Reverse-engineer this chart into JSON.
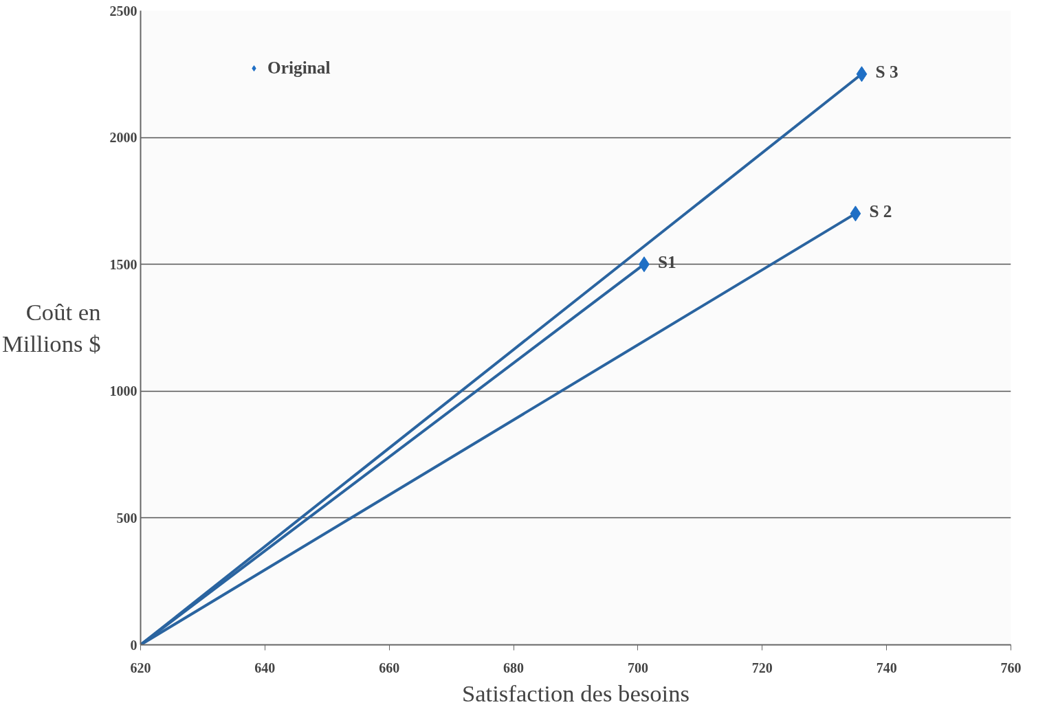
{
  "chart_data": {
    "type": "scatter",
    "xlabel": "Satisfaction des besoins",
    "ylabel": "Coût en\nMillions $",
    "xlim": [
      620,
      760
    ],
    "xticks": [
      620,
      640,
      660,
      680,
      700,
      720,
      740,
      760
    ],
    "ylim": [
      0,
      2500
    ],
    "yticks": [
      0,
      500,
      1000,
      1500,
      2000,
      2500
    ],
    "grid": "y",
    "legend": "top left",
    "series": [
      {
        "name": "Original",
        "marker": "diamond",
        "color": "#1f6fc5",
        "x": [
          701,
          735,
          736
        ],
        "values": [
          1500,
          1700,
          2250
        ]
      },
      {
        "type": "line",
        "color": "#2a64a0",
        "x": [
          620,
          701
        ],
        "values": [
          0,
          1500
        ]
      },
      {
        "type": "line",
        "color": "#2a64a0",
        "x": [
          620,
          735
        ],
        "values": [
          0,
          1700
        ]
      },
      {
        "type": "line",
        "color": "#2a64a0",
        "x": [
          620,
          736
        ],
        "values": [
          0,
          2250
        ]
      }
    ],
    "annotations": [
      {
        "text": "S1",
        "x": 701,
        "y": 1500
      },
      {
        "text": "S 2",
        "x": 735,
        "y": 1700
      },
      {
        "text": "S 3",
        "x": 736,
        "y": 2250
      }
    ]
  }
}
